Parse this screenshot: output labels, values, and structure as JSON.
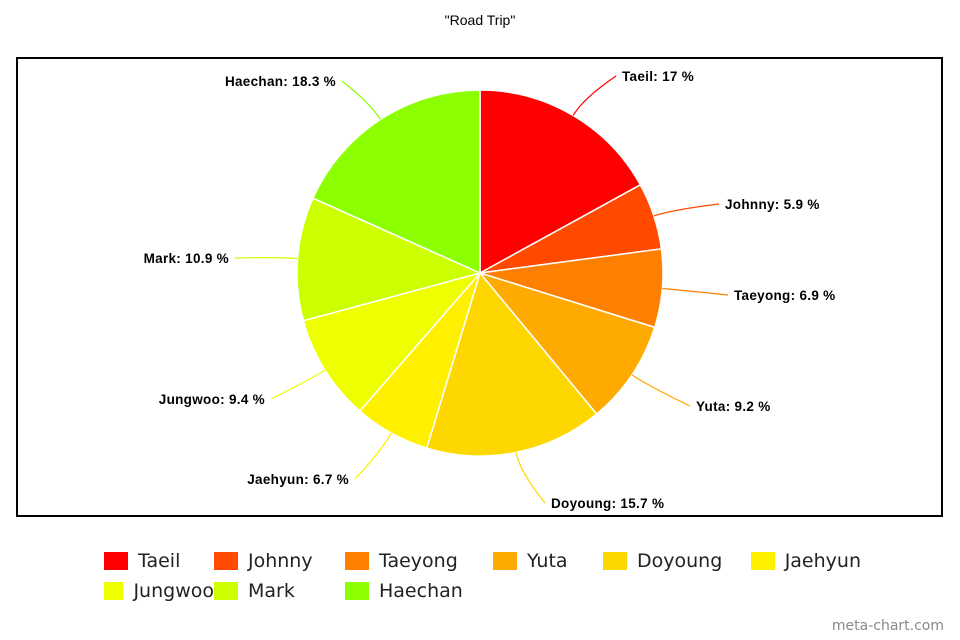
{
  "chart_data": {
    "type": "pie",
    "title": "\"Road Trip\"",
    "categories": [
      "Taeil",
      "Johnny",
      "Taeyong",
      "Yuta",
      "Doyoung",
      "Jaehyun",
      "Jungwoo",
      "Mark",
      "Haechan"
    ],
    "values": [
      17,
      5.9,
      6.9,
      9.2,
      15.7,
      6.7,
      9.4,
      10.9,
      18.3
    ],
    "labels": [
      "Taeil: 17 %",
      "Johnny: 5.9 %",
      "Taeyong: 6.9 %",
      "Yuta: 9.2 %",
      "Doyoung: 15.7 %",
      "Jaehyun: 6.7 %",
      "Jungwoo: 9.4 %",
      "Mark: 10.9 %",
      "Haechan: 18.3 %"
    ],
    "colors": [
      "#ff0000",
      "#ff4a00",
      "#ff8000",
      "#ffaa00",
      "#ffd700",
      "#fff000",
      "#eeff00",
      "#ccff00",
      "#8cff00"
    ],
    "legend_position": "bottom"
  },
  "watermark": "meta-chart.com"
}
